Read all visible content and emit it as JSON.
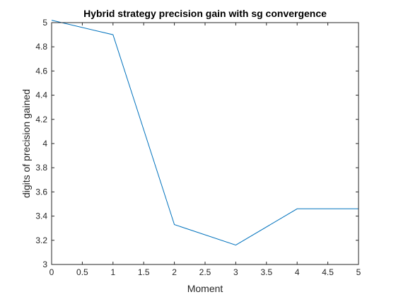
{
  "chart_data": {
    "type": "line",
    "title": "Hybrid strategy precision gain with sg convergence",
    "xlabel": "Moment",
    "ylabel": "digits of precision gained",
    "xlim": [
      0,
      5
    ],
    "ylim": [
      3,
      5
    ],
    "xticks": [
      "0",
      "0.5",
      "1",
      "1.5",
      "2",
      "2.5",
      "3",
      "3.5",
      "4",
      "4.5",
      "5"
    ],
    "yticks": [
      "3",
      "3.2",
      "3.4",
      "3.6",
      "3.8",
      "4",
      "4.2",
      "4.4",
      "4.6",
      "4.8",
      "5"
    ],
    "grid": false,
    "series": [
      {
        "x": [
          0,
          1,
          2,
          3,
          4,
          5
        ],
        "values": [
          5.02,
          4.9,
          3.33,
          3.16,
          3.46,
          3.46
        ],
        "color": "#0072BD"
      }
    ]
  }
}
